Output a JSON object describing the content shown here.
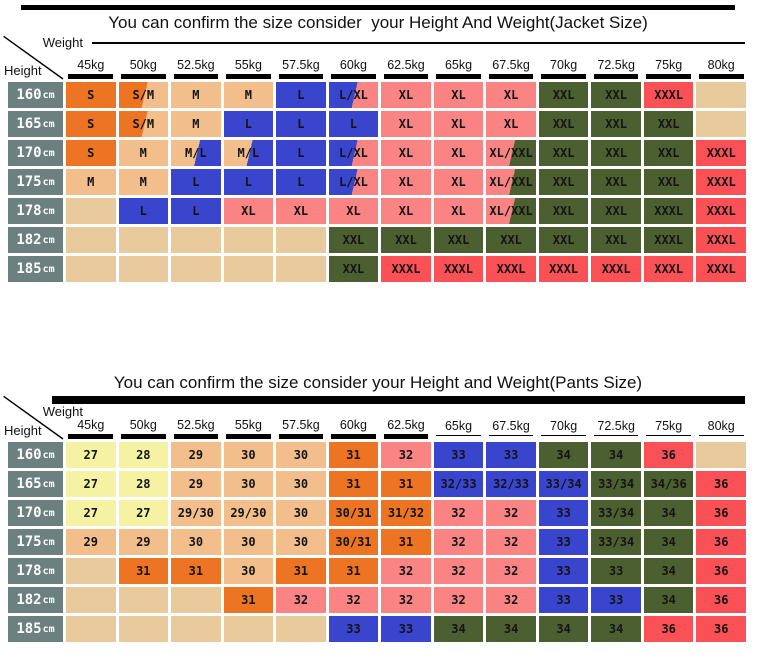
{
  "palette": {
    "orange": "#EC7423",
    "tan": "#F2BE8C",
    "blue": "#3A45CE",
    "pink": "#FA8484",
    "green": "#4C5F30",
    "red": "#FA5157",
    "empty": "#E9CA9D",
    "yellow": "#F6F2A4",
    "row_header": "#6C8080",
    "bar": "#000000"
  },
  "chart_data": [
    {
      "type": "table",
      "id": "jacket",
      "title": "You can confirm the size consider  your Height And Weight(Jacket Size)",
      "axis_corner": {
        "weight": "Weight",
        "height": "Height"
      },
      "columns": [
        "45kg",
        "50kg",
        "52.5kg",
        "55kg",
        "57.5kg",
        "60kg",
        "62.5kg",
        "65kg",
        "67.5kg",
        "70kg",
        "72.5kg",
        "75kg",
        "80kg"
      ],
      "rows": [
        {
          "height": "160cm",
          "cells": [
            [
              "S",
              "orange"
            ],
            [
              "S/M",
              "orange/tan"
            ],
            [
              "M",
              "tan"
            ],
            [
              "M",
              "tan"
            ],
            [
              "L",
              "blue"
            ],
            [
              "L/XL",
              "blue/pink"
            ],
            [
              "XL",
              "pink"
            ],
            [
              "XL",
              "pink"
            ],
            [
              "XL",
              "pink"
            ],
            [
              "XXL",
              "green"
            ],
            [
              "XXL",
              "green"
            ],
            [
              "XXXL",
              "red"
            ],
            [
              "",
              "empty"
            ]
          ]
        },
        {
          "height": "165cm",
          "cells": [
            [
              "S",
              "orange"
            ],
            [
              "S/M",
              "orange/tan"
            ],
            [
              "M",
              "tan"
            ],
            [
              "L",
              "blue"
            ],
            [
              "L",
              "blue"
            ],
            [
              "L",
              "blue"
            ],
            [
              "XL",
              "pink"
            ],
            [
              "XL",
              "pink"
            ],
            [
              "XL",
              "pink"
            ],
            [
              "XXL",
              "green"
            ],
            [
              "XXL",
              "green"
            ],
            [
              "XXL",
              "green"
            ],
            [
              "",
              "empty"
            ]
          ]
        },
        {
          "height": "170cm",
          "cells": [
            [
              "S",
              "orange"
            ],
            [
              "M",
              "tan"
            ],
            [
              "M/L",
              "tan/blue"
            ],
            [
              "M/L",
              "tan/blue"
            ],
            [
              "L",
              "blue"
            ],
            [
              "L/XL",
              "blue/pink"
            ],
            [
              "XL",
              "pink"
            ],
            [
              "XL",
              "pink"
            ],
            [
              "XL/XXL",
              "pink/green"
            ],
            [
              "XXL",
              "green"
            ],
            [
              "XXL",
              "green"
            ],
            [
              "XXL",
              "green"
            ],
            [
              "XXXL",
              "red"
            ]
          ]
        },
        {
          "height": "175cm",
          "cells": [
            [
              "M",
              "tan"
            ],
            [
              "M",
              "tan"
            ],
            [
              "L",
              "blue"
            ],
            [
              "L",
              "blue"
            ],
            [
              "L",
              "blue"
            ],
            [
              "L/XL",
              "blue/pink"
            ],
            [
              "XL",
              "pink"
            ],
            [
              "XL",
              "pink"
            ],
            [
              "XL/XXL",
              "pink/green"
            ],
            [
              "XXL",
              "green"
            ],
            [
              "XXL",
              "green"
            ],
            [
              "XXL",
              "green"
            ],
            [
              "XXXL",
              "red"
            ]
          ]
        },
        {
          "height": "178cm",
          "cells": [
            [
              "",
              "empty"
            ],
            [
              "L",
              "blue"
            ],
            [
              "L",
              "blue"
            ],
            [
              "XL",
              "pink"
            ],
            [
              "XL",
              "pink"
            ],
            [
              "XL",
              "pink"
            ],
            [
              "XL",
              "pink"
            ],
            [
              "XL",
              "pink"
            ],
            [
              "XL/XXL",
              "pink/green"
            ],
            [
              "XXL",
              "green"
            ],
            [
              "XXL",
              "green"
            ],
            [
              "XXXL",
              "green"
            ],
            [
              "XXXL",
              "red"
            ]
          ]
        },
        {
          "height": "182cm",
          "cells": [
            [
              "",
              "empty"
            ],
            [
              "",
              "empty"
            ],
            [
              "",
              "empty"
            ],
            [
              "",
              "empty"
            ],
            [
              "",
              "empty"
            ],
            [
              "XXL",
              "green"
            ],
            [
              "XXL",
              "green"
            ],
            [
              "XXL",
              "green"
            ],
            [
              "XXL",
              "green"
            ],
            [
              "XXL",
              "green"
            ],
            [
              "XXL",
              "green"
            ],
            [
              "XXXL",
              "green"
            ],
            [
              "XXXL",
              "red"
            ]
          ]
        },
        {
          "height": "185cm",
          "cells": [
            [
              "",
              "empty"
            ],
            [
              "",
              "empty"
            ],
            [
              "",
              "empty"
            ],
            [
              "",
              "empty"
            ],
            [
              "",
              "empty"
            ],
            [
              "XXL",
              "green"
            ],
            [
              "XXXL",
              "red"
            ],
            [
              "XXXL",
              "red"
            ],
            [
              "XXXL",
              "red"
            ],
            [
              "XXXL",
              "red"
            ],
            [
              "XXXL",
              "red"
            ],
            [
              "XXXL",
              "red"
            ],
            [
              "XXXL",
              "red"
            ]
          ]
        }
      ]
    },
    {
      "type": "table",
      "id": "pants",
      "title": "You can confirm the size consider your Height and Weight(Pants Size)",
      "axis_corner": {
        "weight": "Weight",
        "height": "Height"
      },
      "columns": [
        "45kg",
        "50kg",
        "52.5kg",
        "55kg",
        "57.5kg",
        "60kg",
        "62.5kg",
        "65kg",
        "67.5kg",
        "70kg",
        "72.5kg",
        "75kg",
        "80kg"
      ],
      "rows": [
        {
          "height": "160cm",
          "cells": [
            [
              "27",
              "yellow"
            ],
            [
              "28",
              "yellow"
            ],
            [
              "29",
              "tan"
            ],
            [
              "30",
              "tan"
            ],
            [
              "30",
              "tan"
            ],
            [
              "31",
              "orange"
            ],
            [
              "32",
              "pink"
            ],
            [
              "33",
              "blue"
            ],
            [
              "33",
              "blue"
            ],
            [
              "34",
              "green"
            ],
            [
              "34",
              "green"
            ],
            [
              "36",
              "red"
            ],
            [
              "",
              "empty"
            ]
          ]
        },
        {
          "height": "165cm",
          "cells": [
            [
              "27",
              "yellow"
            ],
            [
              "28",
              "yellow"
            ],
            [
              "29",
              "tan"
            ],
            [
              "30",
              "tan"
            ],
            [
              "30",
              "tan"
            ],
            [
              "31",
              "orange"
            ],
            [
              "31",
              "orange"
            ],
            [
              "32/33",
              "blue"
            ],
            [
              "32/33",
              "blue"
            ],
            [
              "33/34",
              "blue"
            ],
            [
              "33/34",
              "green"
            ],
            [
              "34/36",
              "green"
            ],
            [
              "36",
              "red"
            ]
          ]
        },
        {
          "height": "170cm",
          "cells": [
            [
              "27",
              "yellow"
            ],
            [
              "27",
              "yellow"
            ],
            [
              "29/30",
              "tan"
            ],
            [
              "29/30",
              "tan"
            ],
            [
              "30",
              "tan"
            ],
            [
              "30/31",
              "orange"
            ],
            [
              "31/32",
              "orange"
            ],
            [
              "32",
              "pink"
            ],
            [
              "32",
              "pink"
            ],
            [
              "33",
              "blue"
            ],
            [
              "33/34",
              "green"
            ],
            [
              "34",
              "green"
            ],
            [
              "36",
              "red"
            ]
          ]
        },
        {
          "height": "175cm",
          "cells": [
            [
              "29",
              "tan"
            ],
            [
              "29",
              "tan"
            ],
            [
              "30",
              "tan"
            ],
            [
              "30",
              "tan"
            ],
            [
              "30",
              "tan"
            ],
            [
              "30/31",
              "orange"
            ],
            [
              "31",
              "orange"
            ],
            [
              "32",
              "pink"
            ],
            [
              "32",
              "pink"
            ],
            [
              "33",
              "blue"
            ],
            [
              "33/34",
              "green"
            ],
            [
              "34",
              "green"
            ],
            [
              "36",
              "red"
            ]
          ]
        },
        {
          "height": "178cm",
          "cells": [
            [
              "",
              "empty"
            ],
            [
              "31",
              "orange"
            ],
            [
              "31",
              "orange"
            ],
            [
              "30",
              "tan"
            ],
            [
              "31",
              "orange"
            ],
            [
              "31",
              "orange"
            ],
            [
              "32",
              "pink"
            ],
            [
              "32",
              "pink"
            ],
            [
              "32",
              "pink"
            ],
            [
              "33",
              "blue"
            ],
            [
              "33",
              "green"
            ],
            [
              "34",
              "green"
            ],
            [
              "36",
              "red"
            ]
          ]
        },
        {
          "height": "182cm",
          "cells": [
            [
              "",
              "empty"
            ],
            [
              "",
              "empty"
            ],
            [
              "",
              "empty"
            ],
            [
              "31",
              "orange"
            ],
            [
              "32",
              "pink"
            ],
            [
              "32",
              "pink"
            ],
            [
              "32",
              "pink"
            ],
            [
              "32",
              "pink"
            ],
            [
              "32",
              "pink"
            ],
            [
              "33",
              "blue"
            ],
            [
              "33",
              "blue"
            ],
            [
              "34",
              "green"
            ],
            [
              "36",
              "red"
            ]
          ]
        },
        {
          "height": "185cm",
          "cells": [
            [
              "",
              "empty"
            ],
            [
              "",
              "empty"
            ],
            [
              "",
              "empty"
            ],
            [
              "",
              "empty"
            ],
            [
              "",
              "empty"
            ],
            [
              "33",
              "blue"
            ],
            [
              "33",
              "blue"
            ],
            [
              "34",
              "green"
            ],
            [
              "34",
              "green"
            ],
            [
              "34",
              "green"
            ],
            [
              "34",
              "green"
            ],
            [
              "36",
              "red"
            ],
            [
              "36",
              "red"
            ]
          ]
        }
      ]
    }
  ]
}
